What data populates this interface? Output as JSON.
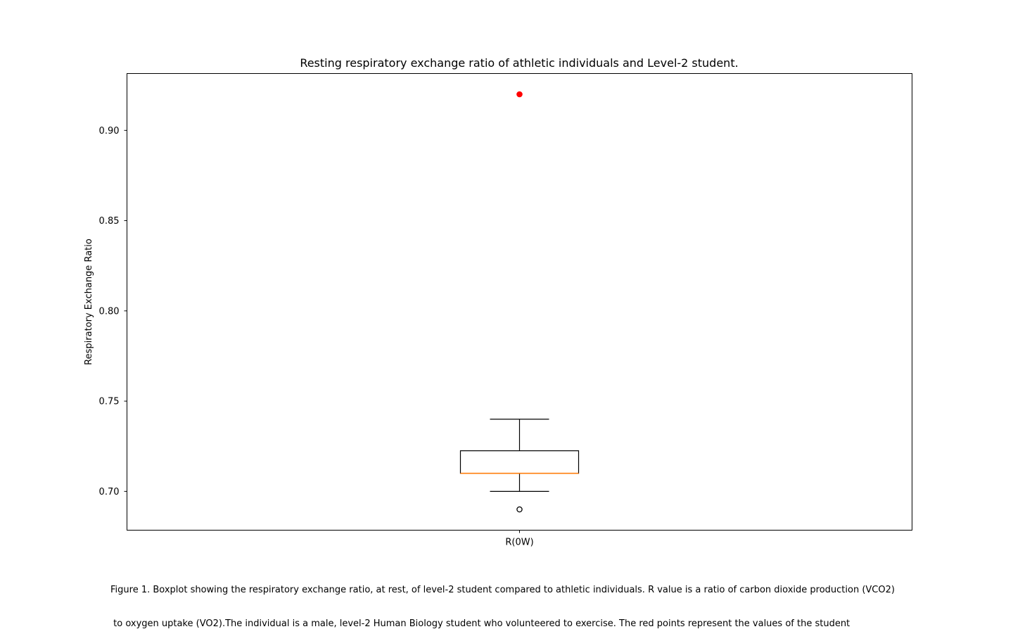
{
  "chart_data": {
    "type": "boxplot",
    "title": "Resting respiratory exchange ratio of athletic individuals and Level-2 student.",
    "xlabel": "",
    "ylabel": "Respiratory Exchange Ratio",
    "ylim": [
      0.6785,
      0.9315
    ],
    "yticks": [
      "0.70",
      "0.75",
      "0.80",
      "0.85",
      "0.90"
    ],
    "categories": [
      "R(0W)"
    ],
    "boxes": [
      {
        "name": "R(0W)",
        "whisker_low": 0.7,
        "q1": 0.71,
        "median": 0.71,
        "q3": 0.7225,
        "whisker_high": 0.74,
        "fliers": [
          0.69
        ]
      }
    ],
    "student_points": [
      0.92
    ],
    "grid": false,
    "colors": {
      "box": "#000000",
      "median": "#ff7f0e",
      "student_point": "#ff0000"
    }
  },
  "caption": {
    "line1": "Figure 1. Boxplot showing the respiratory exchange ratio, at rest, of level-2 student compared to athletic individuals. R value is a ratio of carbon dioxide production (VCO2)",
    "line2": " to oxygen uptake (VO2).The individual is a male, level-2 Human Biology student who volunteered to exercise. The red points represent the values of the student"
  }
}
